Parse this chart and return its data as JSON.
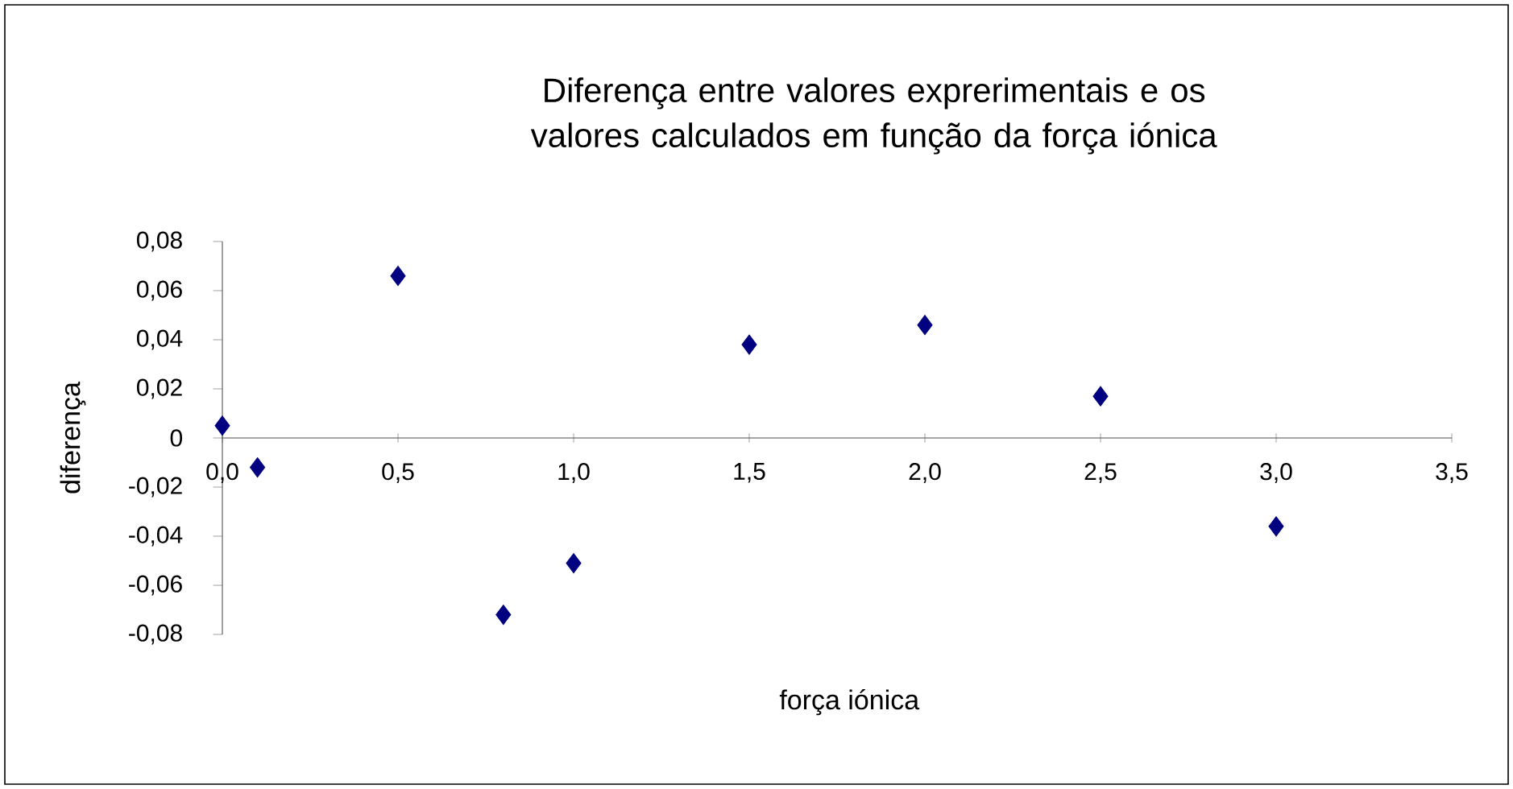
{
  "chart_data": {
    "type": "scatter",
    "title": "Diferença entre valores exprerimentais e os valores calculados em função da força iónica",
    "xlabel": "força iónica",
    "ylabel": "diferença",
    "x": [
      0,
      0.1,
      0.5,
      0.8,
      1.0,
      1.5,
      2.0,
      2.5,
      3.0
    ],
    "values": [
      0.005,
      -0.012,
      0.066,
      -0.072,
      -0.051,
      0.038,
      0.046,
      0.017,
      -0.036
    ],
    "color": "#000080",
    "marker": "diamond",
    "xlim": [
      0,
      3.5
    ],
    "ylim": [
      -0.08,
      0.08
    ],
    "xticks": [
      {
        "value": 0,
        "label": "0,0"
      },
      {
        "value": 0.5,
        "label": "0,5"
      },
      {
        "value": 1.0,
        "label": "1,0"
      },
      {
        "value": 1.5,
        "label": "1,5"
      },
      {
        "value": 2.0,
        "label": "2,0"
      },
      {
        "value": 2.5,
        "label": "2,5"
      },
      {
        "value": 3.0,
        "label": "3,0"
      },
      {
        "value": 3.5,
        "label": "3,5"
      }
    ],
    "yticks": [
      {
        "value": -0.08,
        "label": "-0,08"
      },
      {
        "value": -0.06,
        "label": "-0,06"
      },
      {
        "value": -0.04,
        "label": "-0,04"
      },
      {
        "value": -0.02,
        "label": "-0,02"
      },
      0,
      {
        "value": 0.02,
        "label": "0,02"
      },
      {
        "value": 0.04,
        "label": "0,04"
      },
      {
        "value": 0.06,
        "label": "0,06"
      },
      {
        "value": 0.08,
        "label": "0,08"
      }
    ]
  }
}
